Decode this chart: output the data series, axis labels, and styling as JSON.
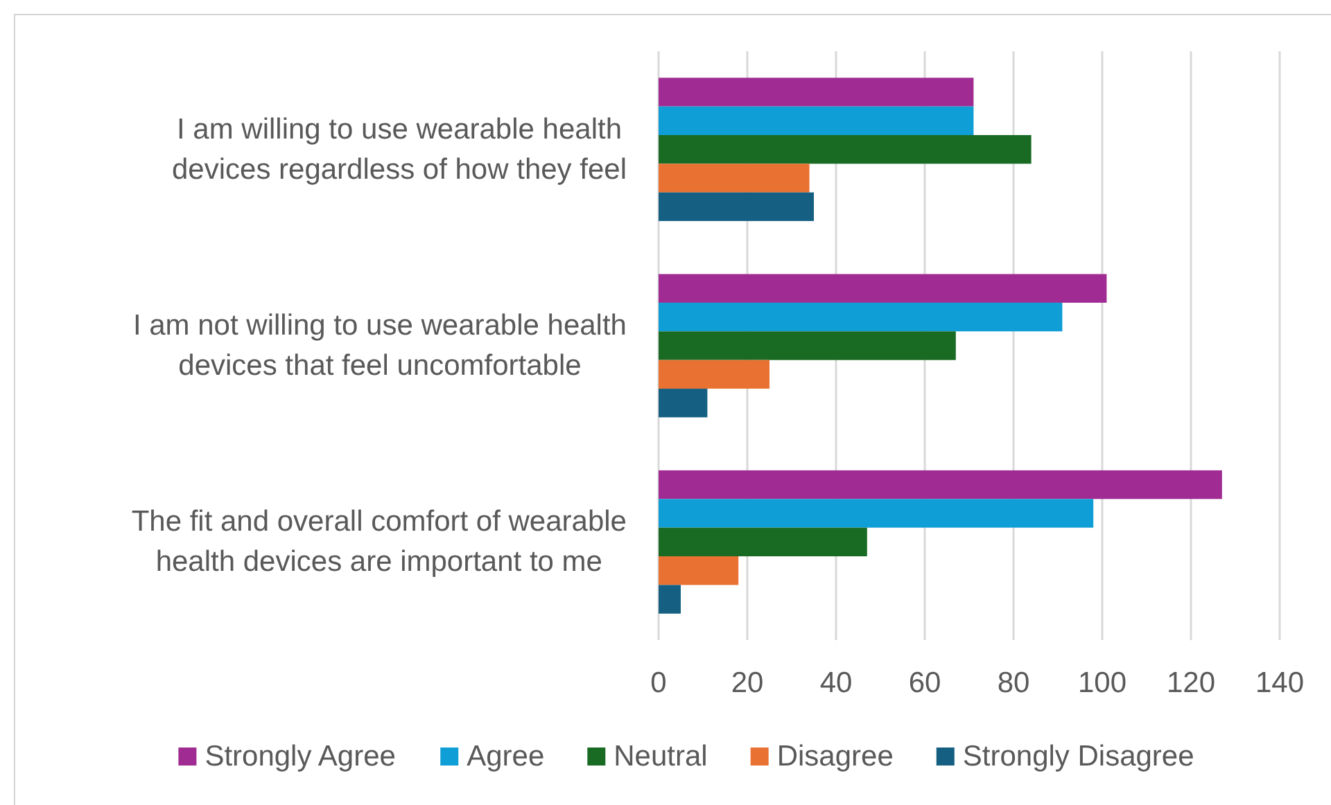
{
  "chart_data": {
    "type": "bar",
    "orientation": "horizontal",
    "categories": [
      "I am willing to use wearable health devices regardless of how they feel",
      "I am not willing to use wearable health devices that feel uncomfortable",
      "The fit and overall comfort of wearable health devices are important to me"
    ],
    "series": [
      {
        "name": "Strongly Agree",
        "color": "#a02b93",
        "values": [
          71,
          101,
          127
        ]
      },
      {
        "name": "Agree",
        "color": "#0f9ed5",
        "values": [
          71,
          91,
          98
        ]
      },
      {
        "name": "Neutral",
        "color": "#196b24",
        "values": [
          84,
          67,
          47
        ]
      },
      {
        "name": "Disagree",
        "color": "#e97132",
        "values": [
          34,
          25,
          18
        ]
      },
      {
        "name": "Strongly Disagree",
        "color": "#156082",
        "values": [
          35,
          11,
          5
        ]
      }
    ],
    "xlim": [
      0,
      140
    ],
    "xticks": [
      0,
      20,
      40,
      60,
      80,
      100,
      120,
      140
    ],
    "grid": "x",
    "legend": "bottom"
  }
}
